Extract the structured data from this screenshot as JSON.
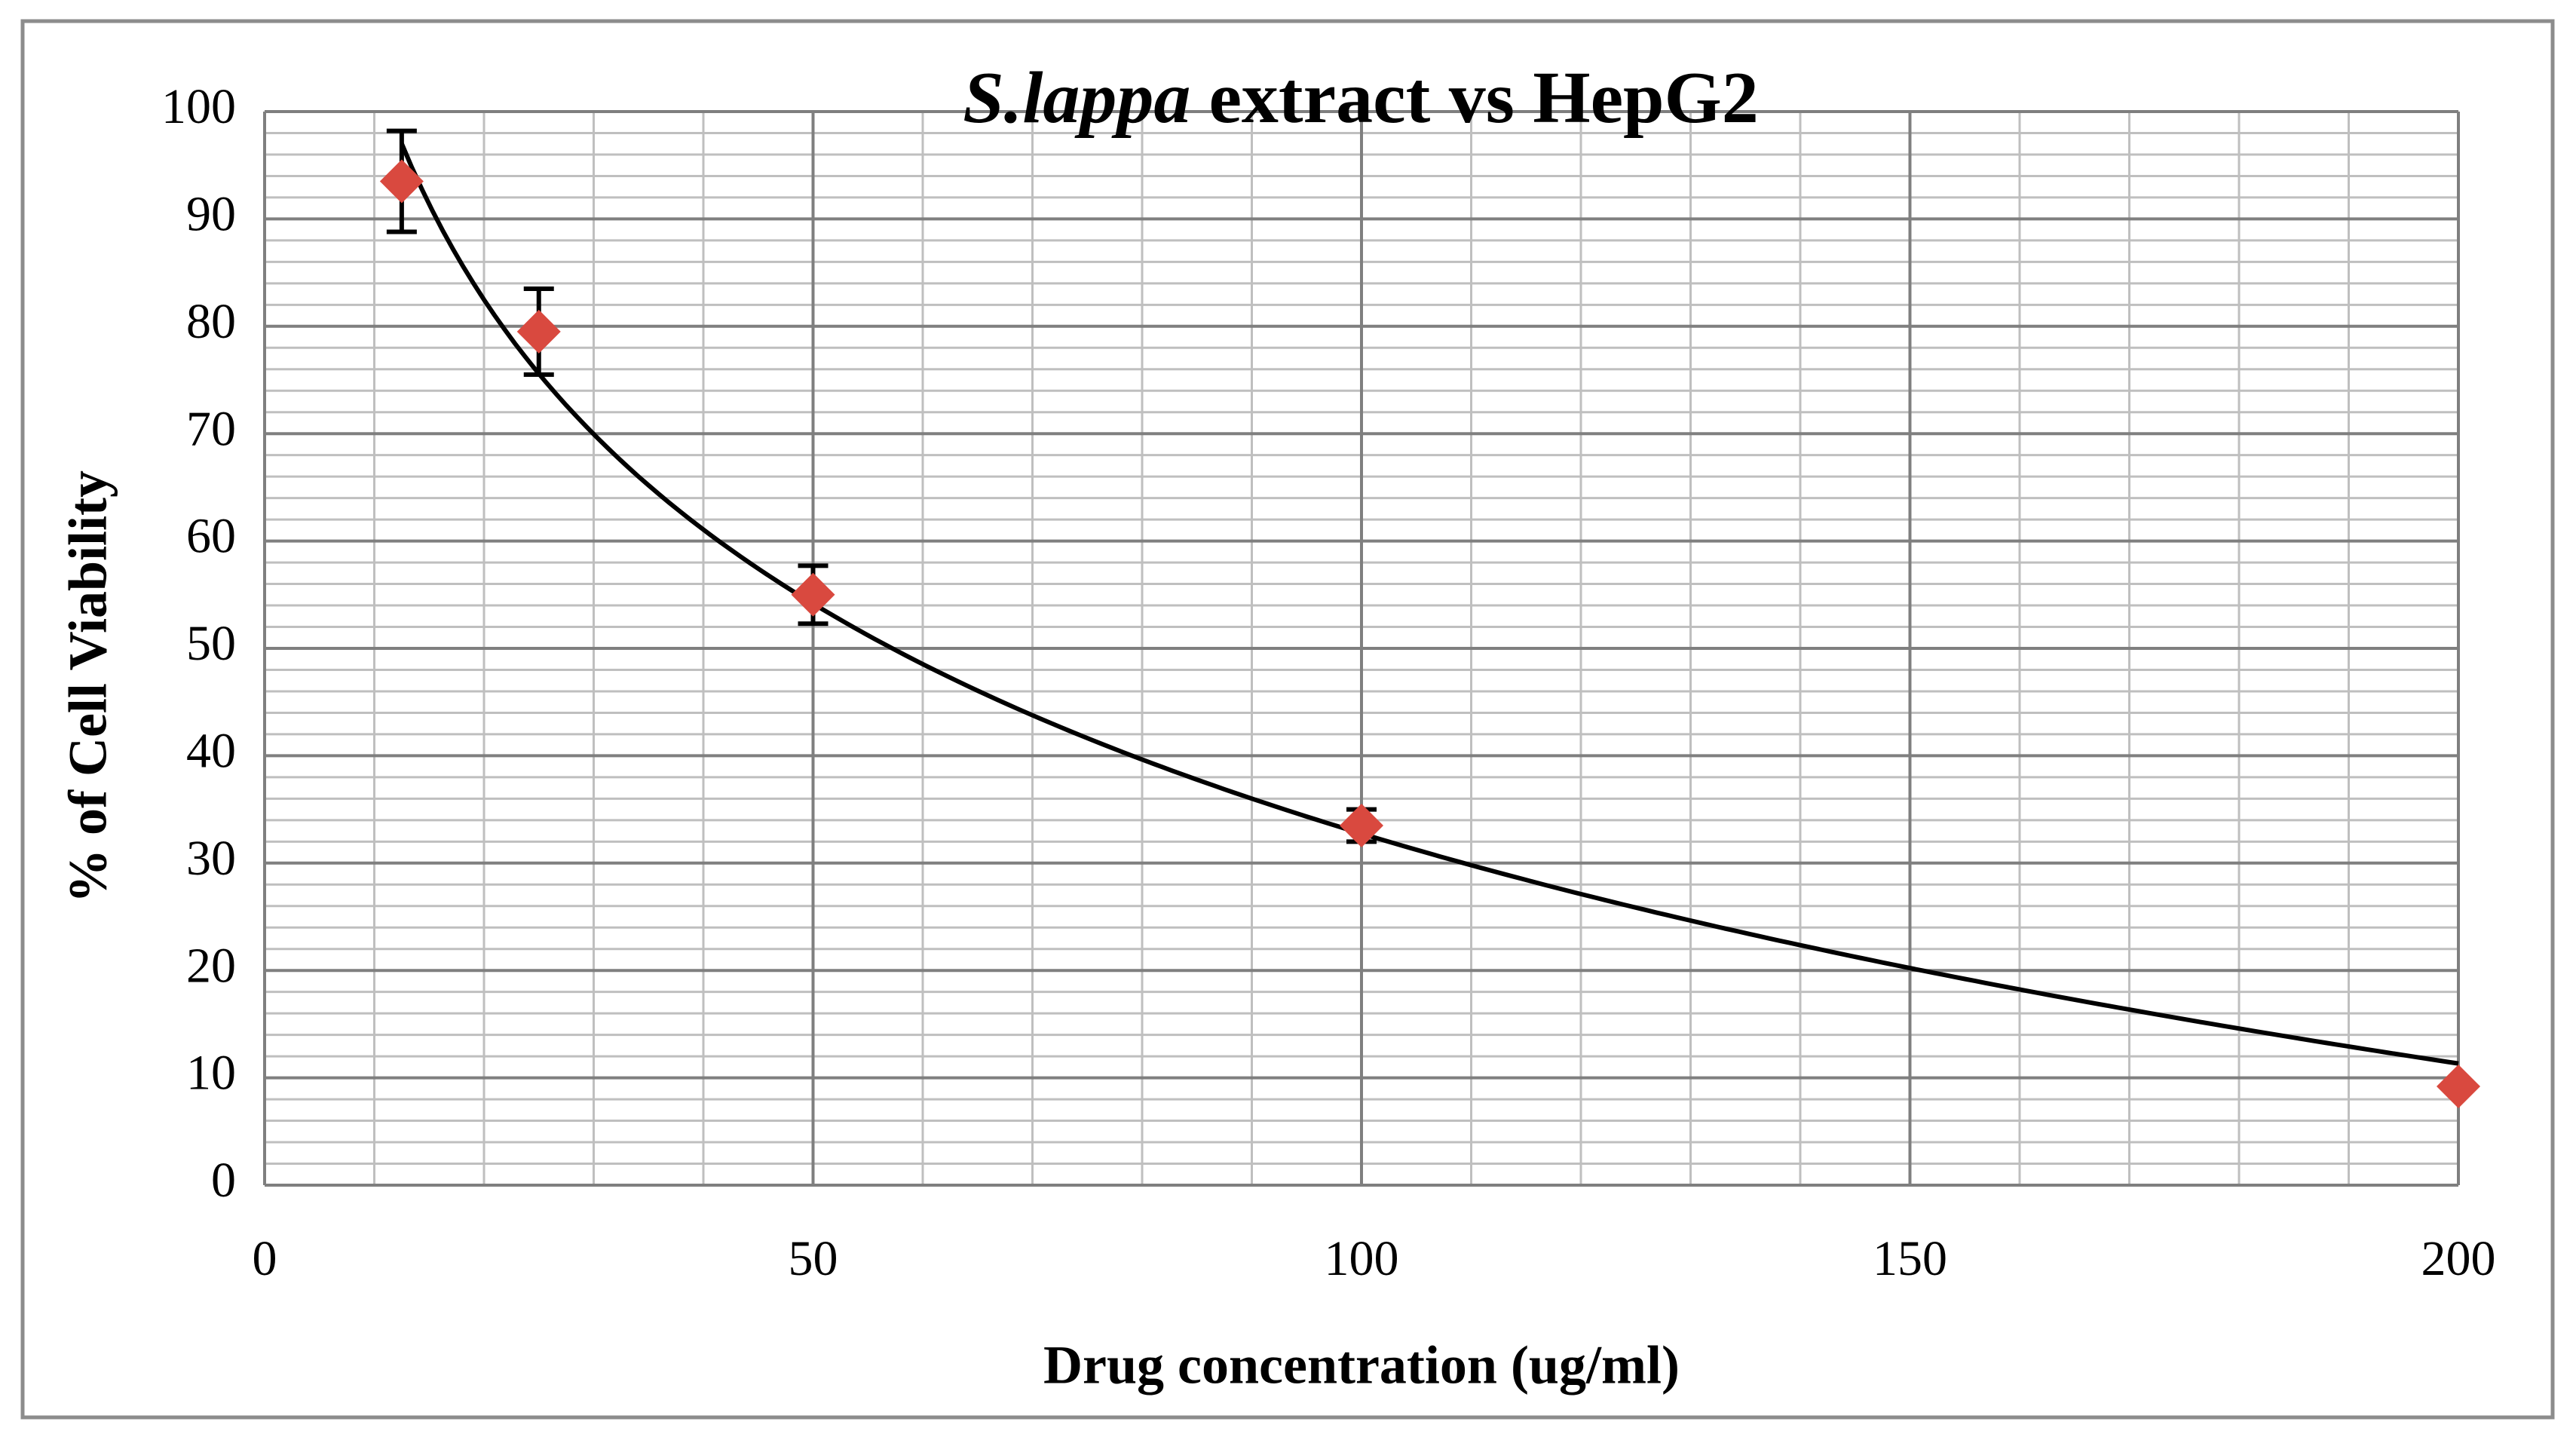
{
  "chart_data": {
    "type": "scatter",
    "title": {
      "italic": "S.lappa",
      "normal": "extract vs HepG2"
    },
    "xlabel": "Drug concentration (ug/ml)",
    "ylabel": "% of Cell Viability",
    "x": [
      12.5,
      25,
      50,
      100,
      200
    ],
    "series": [
      {
        "name": "Cell viability",
        "color": "#d9493f",
        "values": [
          93.5,
          79.5,
          55,
          33.5,
          9.2
        ],
        "errors": [
          4.7,
          4,
          2.7,
          1.5,
          null
        ]
      }
    ],
    "trendline": {
      "kind": "logarithmic",
      "color": "#000000",
      "coefficients": [
        -30.9,
        175.05
      ]
    },
    "xlim": [
      0,
      200
    ],
    "xticks": [
      0,
      50,
      100,
      150,
      200
    ],
    "ylim": [
      0,
      100
    ],
    "yticks": [
      0,
      10,
      20,
      30,
      40,
      50,
      60,
      70,
      80,
      90,
      100
    ],
    "grid": true,
    "minor_grid": {
      "x_step": 10,
      "y_step": 2
    }
  }
}
